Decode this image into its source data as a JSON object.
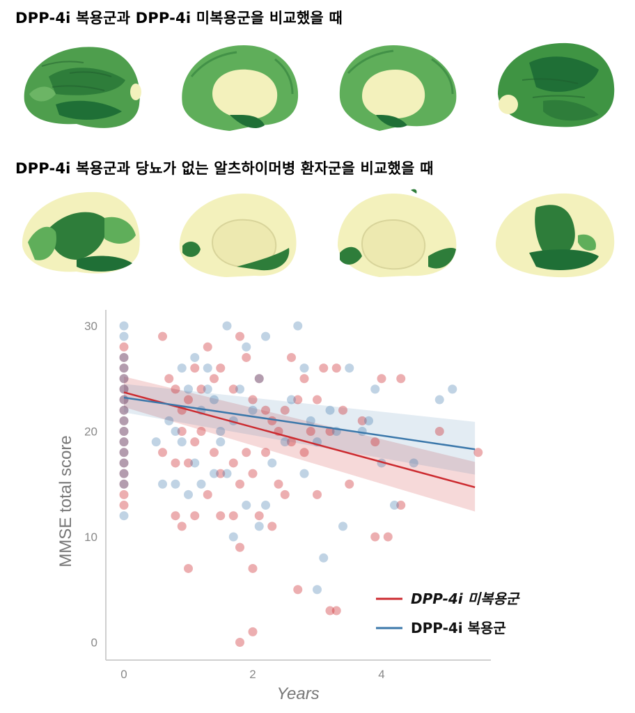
{
  "headings": {
    "comparison_1": "DPP-4i 복용군과 DPP-4i 미복용군을 비교했을 때",
    "comparison_2": "DPP-4i 복용군과 당뇨가 없는 알츠하이머병 환자군을 비교했을 때"
  },
  "colors": {
    "cortex_pale": "#f3f1bc",
    "green_light": "#5fae5a",
    "green_mid": "#3f9443",
    "green_dark": "#1f6f36",
    "non_user": "#cc2a2f",
    "user": "#3a77aa"
  },
  "chart_data": {
    "type": "scatter",
    "xlabel": "Years",
    "ylabel": "MMSE total score",
    "xlim": [
      -0.2,
      5.6
    ],
    "ylim": [
      -1,
      31.5
    ],
    "xticks": [
      0,
      2,
      4
    ],
    "yticks": [
      0,
      10,
      20,
      30
    ],
    "grid": false,
    "legend": "bottom-right",
    "series": [
      {
        "name": "DPP-4i 미복용군",
        "color": "#cc2a2f",
        "trend": {
          "x": [
            0,
            5.45
          ],
          "y": [
            23.7,
            14.7
          ]
        },
        "ci_upper": [
          25.2,
          17.1
        ],
        "ci_lower": [
          22.3,
          12.4
        ],
        "points": [
          [
            0,
            28
          ],
          [
            0,
            27
          ],
          [
            0,
            26
          ],
          [
            0,
            25
          ],
          [
            0,
            24
          ],
          [
            0,
            23
          ],
          [
            0,
            22
          ],
          [
            0,
            21
          ],
          [
            0,
            20
          ],
          [
            0,
            19
          ],
          [
            0,
            18
          ],
          [
            0,
            17
          ],
          [
            0,
            16
          ],
          [
            0,
            15
          ],
          [
            0,
            14
          ],
          [
            0,
            13
          ],
          [
            0.6,
            29
          ],
          [
            0.7,
            25
          ],
          [
            0.8,
            24
          ],
          [
            0.9,
            22
          ],
          [
            1.0,
            23
          ],
          [
            1.1,
            26
          ],
          [
            1.2,
            24
          ],
          [
            1.3,
            28
          ],
          [
            1.4,
            25
          ],
          [
            1.5,
            26
          ],
          [
            1.7,
            24
          ],
          [
            1.8,
            29
          ],
          [
            1.9,
            27
          ],
          [
            2.0,
            23
          ],
          [
            2.1,
            25
          ],
          [
            2.2,
            22
          ],
          [
            2.3,
            21
          ],
          [
            0.6,
            18
          ],
          [
            0.8,
            17
          ],
          [
            0.9,
            20
          ],
          [
            1.0,
            17
          ],
          [
            1.1,
            19
          ],
          [
            1.2,
            20
          ],
          [
            1.3,
            14
          ],
          [
            1.4,
            18
          ],
          [
            1.5,
            16
          ],
          [
            1.7,
            17
          ],
          [
            1.8,
            15
          ],
          [
            1.9,
            18
          ],
          [
            2.0,
            16
          ],
          [
            2.2,
            18
          ],
          [
            2.4,
            15
          ],
          [
            0.8,
            12
          ],
          [
            0.9,
            11
          ],
          [
            1.1,
            12
          ],
          [
            1.5,
            12
          ],
          [
            1.7,
            12
          ],
          [
            1.8,
            9
          ],
          [
            2.1,
            12
          ],
          [
            2.3,
            11
          ],
          [
            1.0,
            7
          ],
          [
            2.0,
            7
          ],
          [
            1.8,
            0
          ],
          [
            2.0,
            1
          ],
          [
            2.4,
            20
          ],
          [
            2.5,
            22
          ],
          [
            2.6,
            19
          ],
          [
            2.7,
            23
          ],
          [
            2.8,
            18
          ],
          [
            2.9,
            20
          ],
          [
            3.0,
            23
          ],
          [
            3.1,
            26
          ],
          [
            3.2,
            20
          ],
          [
            3.3,
            26
          ],
          [
            3.4,
            22
          ],
          [
            3.5,
            15
          ],
          [
            3.7,
            21
          ],
          [
            3.9,
            19
          ],
          [
            4.0,
            25
          ],
          [
            4.3,
            25
          ],
          [
            2.5,
            14
          ],
          [
            2.7,
            5
          ],
          [
            3.0,
            14
          ],
          [
            3.2,
            3
          ],
          [
            3.3,
            3
          ],
          [
            3.9,
            10
          ],
          [
            4.1,
            10
          ],
          [
            4.3,
            13
          ],
          [
            4.9,
            20
          ],
          [
            5.5,
            18
          ],
          [
            2.6,
            27
          ],
          [
            2.8,
            25
          ]
        ]
      },
      {
        "name": "DPP-4i 복용군",
        "color": "#3a77aa",
        "trend": {
          "x": [
            0,
            5.45
          ],
          "y": [
            23.2,
            18.3
          ]
        },
        "ci_upper": [
          24.5,
          20.9
        ],
        "ci_lower": [
          21.8,
          15.9
        ],
        "points": [
          [
            0,
            30
          ],
          [
            0,
            29
          ],
          [
            0,
            27
          ],
          [
            0,
            26
          ],
          [
            0,
            25
          ],
          [
            0,
            24
          ],
          [
            0,
            23
          ],
          [
            0,
            22
          ],
          [
            0,
            21
          ],
          [
            0,
            20
          ],
          [
            0,
            19
          ],
          [
            0,
            18
          ],
          [
            0,
            17
          ],
          [
            0,
            16
          ],
          [
            0,
            15
          ],
          [
            0,
            12
          ],
          [
            0.5,
            19
          ],
          [
            0.6,
            15
          ],
          [
            0.7,
            21
          ],
          [
            0.8,
            20
          ],
          [
            0.9,
            26
          ],
          [
            1.0,
            24
          ],
          [
            1.1,
            27
          ],
          [
            1.2,
            22
          ],
          [
            1.3,
            26
          ],
          [
            1.4,
            23
          ],
          [
            1.5,
            19
          ],
          [
            1.6,
            30
          ],
          [
            1.7,
            21
          ],
          [
            1.8,
            24
          ],
          [
            1.9,
            28
          ],
          [
            2.0,
            22
          ],
          [
            2.1,
            25
          ],
          [
            2.2,
            29
          ],
          [
            0.8,
            15
          ],
          [
            0.9,
            19
          ],
          [
            1.0,
            14
          ],
          [
            1.1,
            17
          ],
          [
            1.2,
            15
          ],
          [
            1.4,
            16
          ],
          [
            1.6,
            16
          ],
          [
            1.7,
            10
          ],
          [
            1.9,
            13
          ],
          [
            2.1,
            11
          ],
          [
            2.3,
            17
          ],
          [
            2.5,
            19
          ],
          [
            2.6,
            23
          ],
          [
            2.7,
            30
          ],
          [
            2.8,
            26
          ],
          [
            2.9,
            21
          ],
          [
            3.0,
            19
          ],
          [
            3.2,
            22
          ],
          [
            3.3,
            20
          ],
          [
            3.5,
            26
          ],
          [
            3.7,
            20
          ],
          [
            3.8,
            21
          ],
          [
            3.9,
            24
          ],
          [
            4.0,
            17
          ],
          [
            4.2,
            13
          ],
          [
            4.5,
            17
          ],
          [
            4.9,
            23
          ],
          [
            5.1,
            24
          ],
          [
            3.0,
            5
          ],
          [
            3.1,
            8
          ],
          [
            3.4,
            11
          ],
          [
            2.8,
            16
          ],
          [
            2.2,
            13
          ],
          [
            1.5,
            20
          ],
          [
            1.3,
            24
          ]
        ]
      }
    ]
  }
}
